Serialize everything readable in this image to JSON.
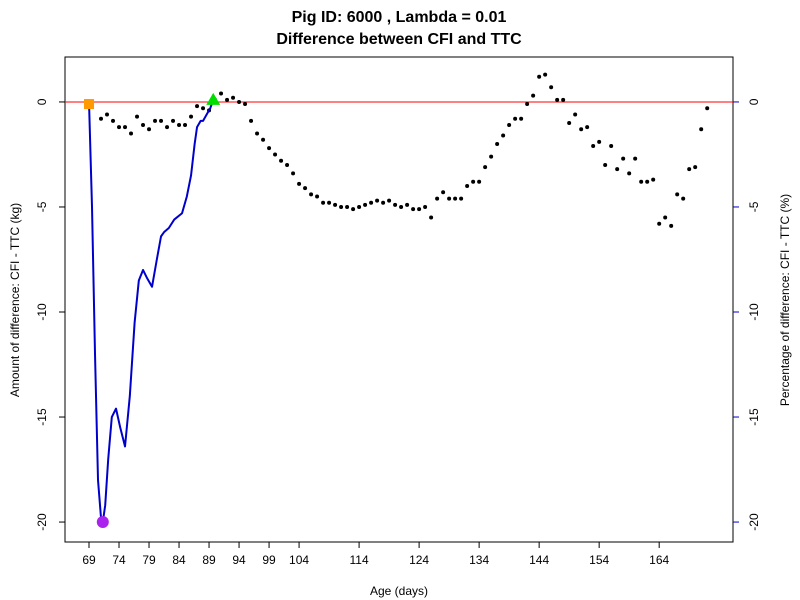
{
  "chart_data": {
    "type": "line",
    "title": "Pig ID: 6000 , Lambda = 0.01",
    "subtitle": "Difference between CFI and TTC",
    "xlabel": "Age (days)",
    "ylabel": "Amount of difference: CFI - TTC (kg)",
    "y2label": "Percentage of difference: CFI - TTC (%)",
    "xlim": [
      65,
      176.3
    ],
    "ylim": [
      -20.95,
      2.14
    ],
    "y2lim": [
      -20.95,
      2.14
    ],
    "xticks": [
      69,
      74,
      79,
      84,
      89,
      94,
      99,
      104,
      114,
      124,
      134,
      144,
      154,
      164
    ],
    "yticks": [
      0,
      -5,
      -10,
      -15,
      -20
    ],
    "y2ticks": [
      0,
      -5,
      -10,
      -15,
      -20
    ],
    "hline": 0,
    "hline_color": "#ff0000",
    "y2_color": "#0000cc",
    "series": [
      {
        "style": "points",
        "color": "#000000",
        "x": [
          71,
          72,
          73,
          74,
          75,
          76,
          77,
          78,
          79,
          80,
          81,
          82,
          83,
          84,
          85,
          86,
          87,
          88,
          89,
          90,
          91,
          92,
          93,
          94,
          95,
          96,
          97,
          98,
          99,
          100,
          101,
          102,
          103,
          104,
          105,
          106,
          107,
          108,
          109,
          110,
          111,
          112,
          113,
          114,
          115,
          116,
          117,
          118,
          119,
          120,
          121,
          122,
          123,
          124,
          125,
          126,
          127,
          128,
          129,
          130,
          131,
          132,
          133,
          134,
          135,
          136,
          137,
          138,
          139,
          140,
          141,
          142,
          143,
          144,
          145,
          146,
          147,
          148,
          149,
          150,
          151,
          152,
          153,
          154,
          155,
          156,
          157,
          158,
          159,
          160,
          161,
          162,
          163,
          164,
          165,
          166,
          167,
          168,
          169,
          170,
          171,
          172
        ],
        "values": [
          -0.8,
          -0.6,
          -0.9,
          -1.2,
          -1.2,
          -1.5,
          -0.7,
          -1.1,
          -1.3,
          -0.9,
          -0.9,
          -1.2,
          -0.9,
          -1.1,
          -1.1,
          -0.7,
          -0.2,
          -0.3,
          -0.4,
          0.1,
          0.4,
          0.1,
          0.2,
          0.0,
          -0.1,
          -0.9,
          -1.5,
          -1.8,
          -2.2,
          -2.5,
          -2.8,
          -3.0,
          -3.4,
          -3.9,
          -4.1,
          -4.4,
          -4.5,
          -4.8,
          -4.8,
          -4.9,
          -5.0,
          -5.0,
          -5.1,
          -5.0,
          -4.9,
          -4.8,
          -4.7,
          -4.8,
          -4.7,
          -4.9,
          -5.0,
          -4.9,
          -5.1,
          -5.1,
          -5.0,
          -5.5,
          -4.6,
          -4.3,
          -4.6,
          -4.6,
          -4.6,
          -4.0,
          -3.8,
          -3.8,
          -3.1,
          -2.6,
          -2.0,
          -1.6,
          -1.1,
          -0.8,
          -0.8,
          -0.1,
          0.3,
          1.2,
          1.3,
          0.7,
          0.1,
          0.1,
          -1.0,
          -0.6,
          -1.3,
          -1.2,
          -2.1,
          -1.9,
          -3.0,
          -2.1,
          -3.2,
          -2.7,
          -3.4,
          -2.7,
          -3.8,
          -3.8,
          -3.7,
          -5.8,
          -5.5,
          -5.9,
          -4.4,
          -4.6,
          -3.2,
          -3.1,
          -1.3,
          -0.3
        ]
      },
      {
        "style": "line",
        "axis": "y2",
        "color": "#0000cc",
        "x": [
          69,
          69.5,
          70,
          70.5,
          71,
          71.3,
          71.7,
          72.2,
          72.8,
          73.5,
          74.2,
          75,
          75.8,
          76.6,
          77.3,
          78,
          78.7,
          79.5,
          80.3,
          81,
          81.5,
          82.3,
          83.2,
          84.5,
          85.3,
          86,
          86.6,
          87,
          87.6,
          88,
          88.6,
          89.2,
          89.7
        ],
        "values": [
          0,
          -5,
          -12,
          -18,
          -19.8,
          -20,
          -19.2,
          -17,
          -15,
          -14.6,
          -15.5,
          -16.4,
          -14,
          -10.5,
          -8.5,
          -8,
          -8.4,
          -8.8,
          -7.5,
          -6.4,
          -6.2,
          -6.0,
          -5.6,
          -5.3,
          -4.5,
          -3.5,
          -2.0,
          -1.2,
          -0.9,
          -0.9,
          -0.6,
          -0.3,
          0.1
        ]
      }
    ],
    "markers": [
      {
        "x": 69,
        "y": -0.1,
        "shape": "square",
        "color": "#ff9900"
      },
      {
        "x": 71.3,
        "y": -20,
        "shape": "circle",
        "color": "#aa22ee"
      },
      {
        "x": 89.7,
        "y": 0.1,
        "shape": "triangle",
        "color": "#00dd00"
      }
    ]
  }
}
